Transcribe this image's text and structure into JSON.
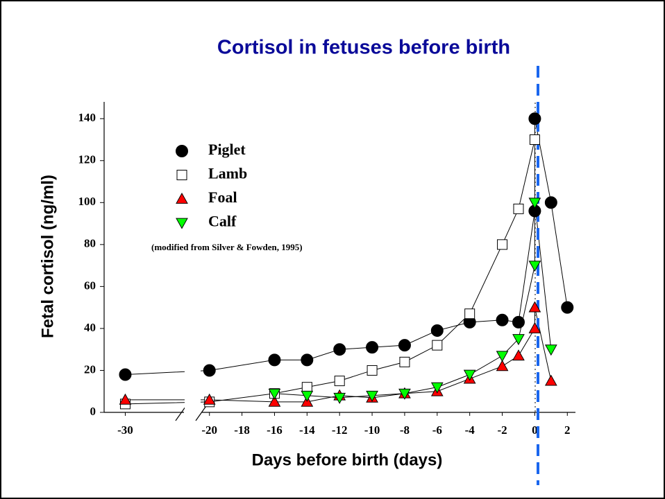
{
  "chart_data": {
    "type": "line",
    "title": "Cortisol in fetuses before birth",
    "x_label": "Days before birth (days)",
    "y_label": "Fetal cortisol (ng/ml)",
    "annotation": "(modified from Silver & Fowden, 1995)",
    "xlim": [
      -31.3,
      2.5
    ],
    "xbreak": [
      -26.4,
      -20.5
    ],
    "xticks": [
      -30,
      -20,
      -18,
      -16,
      -14,
      -12,
      -10,
      -8,
      -6,
      -4,
      -2,
      0,
      2
    ],
    "ylim": [
      0,
      148
    ],
    "yticks": [
      0,
      20,
      40,
      60,
      80,
      100,
      120,
      140
    ],
    "series": [
      {
        "name": "Piglet",
        "color": "#000000",
        "marker": "circle",
        "x": [
          -30,
          -20,
          -16,
          -14,
          -12,
          -10,
          -8,
          -6,
          -4,
          -2,
          -1,
          0,
          0,
          1,
          2
        ],
        "values": [
          18,
          20,
          25,
          25,
          30,
          31,
          32,
          39,
          43,
          44,
          43,
          96,
          140,
          100,
          50
        ]
      },
      {
        "name": "Lamb",
        "color": "#ffffff",
        "marker": "square",
        "x": [
          -30,
          -20,
          -16,
          -14,
          -12,
          -10,
          -8,
          -6,
          -4,
          -2,
          -1,
          0
        ],
        "values": [
          4,
          5,
          9,
          12,
          15,
          20,
          24,
          32,
          47,
          80,
          97,
          130
        ]
      },
      {
        "name": "Foal",
        "color": "#ff0000",
        "marker": "triangle-up",
        "x": [
          -30,
          -20,
          -16,
          -14,
          -12,
          -10,
          -8,
          -6,
          -4,
          -2,
          -1,
          0,
          0,
          1
        ],
        "values": [
          6,
          6,
          5,
          5,
          8,
          7,
          9,
          10,
          16,
          22,
          27,
          40,
          50,
          15
        ]
      },
      {
        "name": "Calf",
        "color": "#00ff00",
        "marker": "triangle-down",
        "x": [
          -16,
          -14,
          -12,
          -10,
          -8,
          -6,
          -4,
          -2,
          -1,
          0,
          0,
          1
        ],
        "values": [
          9,
          8,
          7,
          8,
          9,
          12,
          18,
          27,
          35,
          70,
          100,
          30
        ]
      }
    ]
  }
}
